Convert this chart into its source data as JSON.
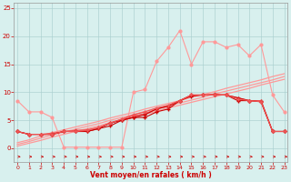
{
  "x": [
    0,
    1,
    2,
    3,
    4,
    5,
    6,
    7,
    8,
    9,
    10,
    11,
    12,
    13,
    14,
    15,
    16,
    17,
    18,
    19,
    20,
    21,
    22,
    23
  ],
  "line_peak": [
    8.5,
    6.5,
    6.5,
    5.5,
    0.2,
    0.2,
    0.2,
    0.2,
    0.2,
    0.2,
    10.0,
    10.5,
    15.5,
    18.0,
    21.0,
    15.0,
    19.0,
    19.0,
    18.0,
    18.5,
    16.5,
    18.5,
    9.5,
    6.5
  ],
  "line_diag1": [
    1.0,
    1.5,
    2.2,
    2.8,
    3.3,
    3.8,
    4.3,
    4.8,
    5.4,
    5.9,
    6.4,
    7.0,
    7.5,
    8.0,
    8.5,
    9.1,
    9.6,
    10.1,
    10.7,
    11.2,
    11.7,
    12.2,
    12.8,
    13.3
  ],
  "line_diag2": [
    0.7,
    1.2,
    1.8,
    2.4,
    2.9,
    3.4,
    3.9,
    4.4,
    5.0,
    5.5,
    6.0,
    6.6,
    7.1,
    7.6,
    8.1,
    8.6,
    9.1,
    9.7,
    10.2,
    10.7,
    11.2,
    11.7,
    12.2,
    12.8
  ],
  "line_diag3": [
    0.4,
    0.9,
    1.4,
    2.0,
    2.5,
    3.0,
    3.5,
    4.0,
    4.6,
    5.1,
    5.6,
    6.1,
    6.6,
    7.2,
    7.7,
    8.2,
    8.7,
    9.2,
    9.7,
    10.2,
    10.7,
    11.3,
    11.8,
    12.3
  ],
  "line_dark1": [
    3.0,
    2.5,
    2.5,
    2.5,
    3.0,
    3.0,
    3.0,
    3.5,
    4.0,
    5.0,
    5.5,
    5.5,
    6.5,
    7.0,
    8.5,
    9.5,
    9.5,
    9.5,
    9.5,
    8.5,
    8.5,
    8.5,
    3.0,
    3.0
  ],
  "line_dark2": [
    3.0,
    2.5,
    2.5,
    2.7,
    3.0,
    3.2,
    3.3,
    3.7,
    4.5,
    5.2,
    5.8,
    6.2,
    7.0,
    7.5,
    8.5,
    9.5,
    9.5,
    9.7,
    9.5,
    9.0,
    8.5,
    8.5,
    3.0,
    3.0
  ],
  "line_dark3": [
    3.0,
    2.5,
    2.5,
    2.5,
    3.0,
    3.0,
    3.0,
    3.5,
    4.5,
    5.0,
    5.5,
    6.0,
    7.0,
    7.5,
    8.5,
    9.3,
    9.5,
    9.5,
    9.5,
    9.0,
    8.5,
    8.3,
    3.0,
    3.0
  ],
  "line_dark4": [
    3.0,
    2.5,
    2.5,
    2.5,
    3.0,
    3.0,
    3.2,
    3.7,
    4.5,
    5.2,
    6.0,
    6.5,
    7.2,
    7.7,
    8.5,
    9.5,
    9.5,
    9.5,
    9.5,
    8.8,
    8.5,
    8.3,
    3.0,
    3.0
  ],
  "arrows_x": [
    0,
    1,
    2,
    3,
    4,
    5,
    6,
    7,
    8,
    9,
    10,
    11,
    12,
    13,
    14,
    15,
    16,
    17,
    18,
    19,
    20,
    21,
    22,
    23
  ],
  "color_light": "#FF9999",
  "color_dark": "#CC0000",
  "color_medium": "#EE5555",
  "bg_color": "#D8F0EE",
  "grid_color": "#AACFCF",
  "xlabel": "Vent moyen/en rafales ( km/h )",
  "ylim": [
    -2.5,
    26
  ],
  "xlim": [
    -0.3,
    23.3
  ],
  "yticks": [
    0,
    5,
    10,
    15,
    20,
    25
  ],
  "xticks": [
    0,
    1,
    2,
    3,
    4,
    5,
    6,
    7,
    8,
    9,
    10,
    11,
    12,
    13,
    14,
    15,
    16,
    17,
    18,
    19,
    20,
    21,
    22,
    23
  ]
}
